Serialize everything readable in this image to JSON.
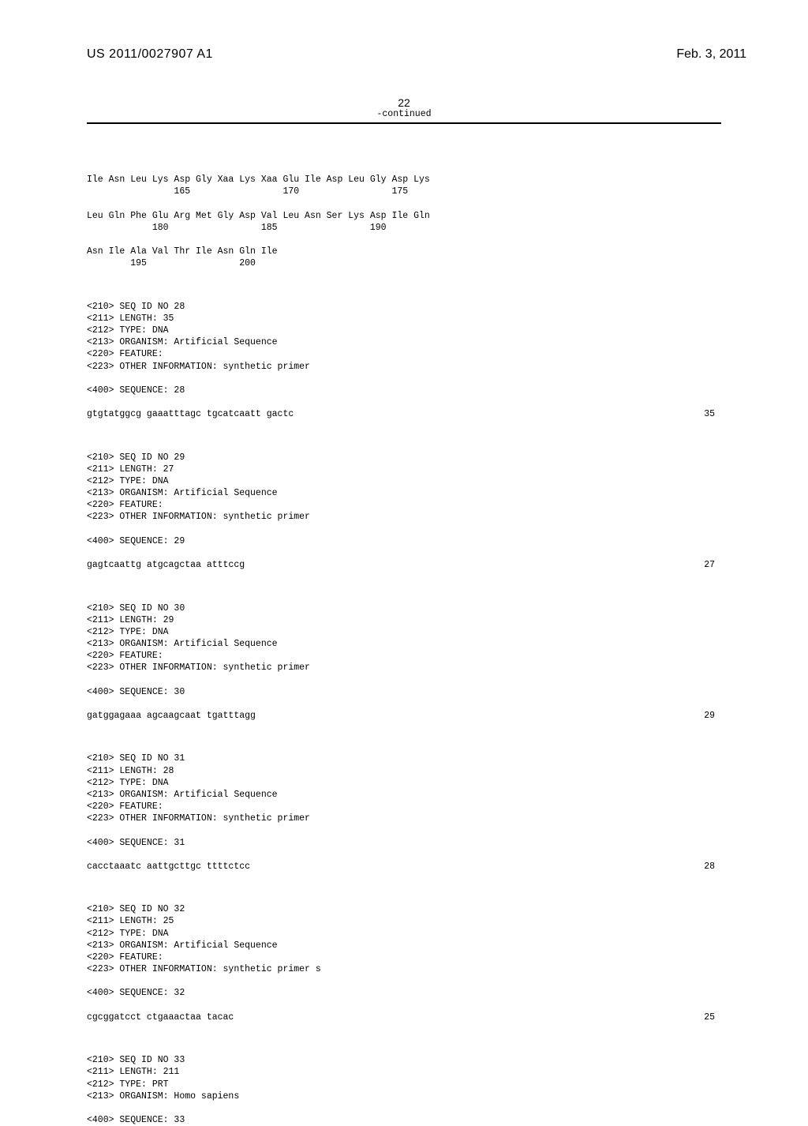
{
  "header": {
    "pub_number": "US 2011/0027907 A1",
    "pub_date": "Feb. 3, 2011"
  },
  "page_number": "22",
  "continued_label": "-continued",
  "colors": {
    "background": "#ffffff",
    "text": "#000000",
    "rule": "#000000"
  },
  "typography": {
    "header_font": "Arial",
    "header_size_pt": 12,
    "mono_font": "Courier New",
    "mono_size_pt": 8.5
  },
  "protein_continuation": {
    "rows": [
      {
        "aa": "Ile Asn Leu Lys Asp Gly Xaa Lys Xaa Glu Ile Asp Leu Gly Asp Lys",
        "pos": "                165                 170                 175"
      },
      {
        "aa": "Leu Gln Phe Glu Arg Met Gly Asp Val Leu Asn Ser Lys Asp Ile Gln",
        "pos": "            180                 185                 190"
      },
      {
        "aa": "Asn Ile Ala Val Thr Ile Asn Gln Ile",
        "pos": "        195                 200"
      }
    ]
  },
  "entries": [
    {
      "id": "28",
      "lines": [
        "<210> SEQ ID NO 28",
        "<211> LENGTH: 35",
        "<212> TYPE: DNA",
        "<213> ORGANISM: Artificial Sequence",
        "<220> FEATURE:",
        "<223> OTHER INFORMATION: synthetic primer"
      ],
      "sequence_label": "<400> SEQUENCE: 28",
      "sequence": "gtgtatggcg gaaatttagc tgcatcaatt gactc",
      "length": "35"
    },
    {
      "id": "29",
      "lines": [
        "<210> SEQ ID NO 29",
        "<211> LENGTH: 27",
        "<212> TYPE: DNA",
        "<213> ORGANISM: Artificial Sequence",
        "<220> FEATURE:",
        "<223> OTHER INFORMATION: synthetic primer"
      ],
      "sequence_label": "<400> SEQUENCE: 29",
      "sequence": "gagtcaattg atgcagctaa atttccg",
      "length": "27"
    },
    {
      "id": "30",
      "lines": [
        "<210> SEQ ID NO 30",
        "<211> LENGTH: 29",
        "<212> TYPE: DNA",
        "<213> ORGANISM: Artificial Sequence",
        "<220> FEATURE:",
        "<223> OTHER INFORMATION: synthetic primer"
      ],
      "sequence_label": "<400> SEQUENCE: 30",
      "sequence": "gatggagaaa agcaagcaat tgatttagg",
      "length": "29"
    },
    {
      "id": "31",
      "lines": [
        "<210> SEQ ID NO 31",
        "<211> LENGTH: 28",
        "<212> TYPE: DNA",
        "<213> ORGANISM: Artificial Sequence",
        "<220> FEATURE:",
        "<223> OTHER INFORMATION: synthetic primer"
      ],
      "sequence_label": "<400> SEQUENCE: 31",
      "sequence": "cacctaaatc aattgcttgc ttttctcc",
      "length": "28"
    },
    {
      "id": "32",
      "lines": [
        "<210> SEQ ID NO 32",
        "<211> LENGTH: 25",
        "<212> TYPE: DNA",
        "<213> ORGANISM: Artificial Sequence",
        "<220> FEATURE:",
        "<223> OTHER INFORMATION: synthetic primer s"
      ],
      "sequence_label": "<400> SEQUENCE: 32",
      "sequence": "cgcggatcct ctgaaactaa tacac",
      "length": "25"
    },
    {
      "id": "33",
      "lines": [
        "<210> SEQ ID NO 33",
        "<211> LENGTH: 211",
        "<212> TYPE: PRT",
        "<213> ORGANISM: Homo sapiens"
      ],
      "sequence_label": "<400> SEQUENCE: 33",
      "sequence": "",
      "length": ""
    }
  ]
}
